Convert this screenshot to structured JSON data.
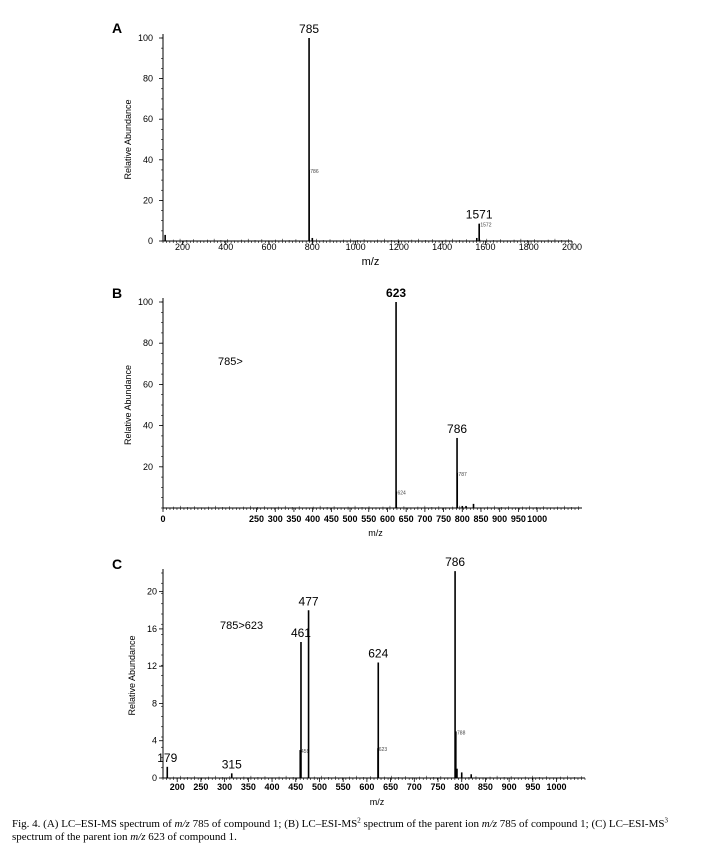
{
  "figure": {
    "caption": {
      "lead": "Fig. 4. (A) LC–ESI-MS spectrum of ",
      "mz1": "m/z",
      "t1": " 785 of compound 1; (B) LC–ESI-MS",
      "sup1": "2",
      "t2": " spectrum of the parent ion ",
      "mz2": "m/z",
      "t3": " 785 of compound 1; (C) LC–ESI-MS",
      "sup2": "3",
      "t4": " spectrum of the parent ion ",
      "mz3": "m/z",
      "t5": " 623 of compound 1."
    }
  },
  "chart_data": [
    {
      "type": "bar",
      "panel": "A",
      "title": "",
      "xlabel": "m/z",
      "ylabel": "Relative Abundance",
      "xlim": [
        110,
        2000
      ],
      "ylim": [
        0,
        100
      ],
      "xticks": [
        200,
        400,
        600,
        800,
        1000,
        1200,
        1400,
        1600,
        1800,
        2000
      ],
      "yticks": [
        0,
        20,
        40,
        60,
        80,
        100
      ],
      "annotation": "",
      "peaks": [
        {
          "x": 785,
          "y": 100,
          "label": "785",
          "bold": false
        },
        {
          "x": 786,
          "y": 35,
          "label": "786",
          "small": true
        },
        {
          "x": 1571,
          "y": 8.5,
          "label": "1571",
          "bold": false
        },
        {
          "x": 1572,
          "y": 8.5,
          "label": "1572",
          "small": true
        },
        {
          "x": 120,
          "y": 3
        },
        {
          "x": 800,
          "y": 1.5
        },
        {
          "x": 1560,
          "y": 1.5
        }
      ]
    },
    {
      "type": "bar",
      "panel": "B",
      "title": "",
      "xlabel": "m/z",
      "ylabel": "Relative Abundance",
      "xlim": [
        0,
        1120
      ],
      "ylim": [
        0,
        100
      ],
      "xticks": [
        0,
        250,
        300,
        350,
        400,
        450,
        500,
        550,
        600,
        650,
        700,
        750,
        800,
        850,
        900,
        950,
        1000
      ],
      "yticks": [
        20,
        40,
        60,
        80,
        100
      ],
      "annotation": "785>",
      "peaks": [
        {
          "x": 623,
          "y": 100,
          "label": "623",
          "bold": true
        },
        {
          "x": 624,
          "y": 8,
          "label": "624",
          "small": true
        },
        {
          "x": 786,
          "y": 34,
          "label": "786",
          "bold": false
        },
        {
          "x": 787,
          "y": 17,
          "label": "787",
          "small": true
        },
        {
          "x": 800,
          "y": 1
        },
        {
          "x": 810,
          "y": 1
        },
        {
          "x": 830,
          "y": 2
        }
      ]
    },
    {
      "type": "bar",
      "panel": "C",
      "title": "",
      "xlabel": "m/z",
      "ylabel": "Relative Abundance",
      "xlim": [
        170,
        1060
      ],
      "ylim": [
        0,
        22
      ],
      "xticks": [
        200,
        250,
        300,
        350,
        400,
        450,
        500,
        550,
        600,
        650,
        700,
        750,
        800,
        850,
        900,
        950,
        1000
      ],
      "yticks": [
        0,
        4,
        8,
        12,
        16,
        20
      ],
      "annotation": "785>623",
      "peaks": [
        {
          "x": 179,
          "y": 1.2,
          "label": "179",
          "bold": false
        },
        {
          "x": 315,
          "y": 0.5,
          "label": "315",
          "bold": false
        },
        {
          "x": 459,
          "y": 3,
          "label": "459",
          "small": true
        },
        {
          "x": 461,
          "y": 14.6,
          "label": "461",
          "bold": false
        },
        {
          "x": 477,
          "y": 18,
          "label": "477",
          "bold": false
        },
        {
          "x": 623,
          "y": 3.2,
          "label": "623",
          "small": true
        },
        {
          "x": 624,
          "y": 12.4,
          "label": "624",
          "bold": false
        },
        {
          "x": 786,
          "y": 22.2,
          "label": "786",
          "bold": false
        },
        {
          "x": 788,
          "y": 5,
          "label": "788",
          "small": true
        },
        {
          "x": 790,
          "y": 1
        },
        {
          "x": 800,
          "y": 0.6
        },
        {
          "x": 820,
          "y": 0.4
        }
      ]
    }
  ]
}
